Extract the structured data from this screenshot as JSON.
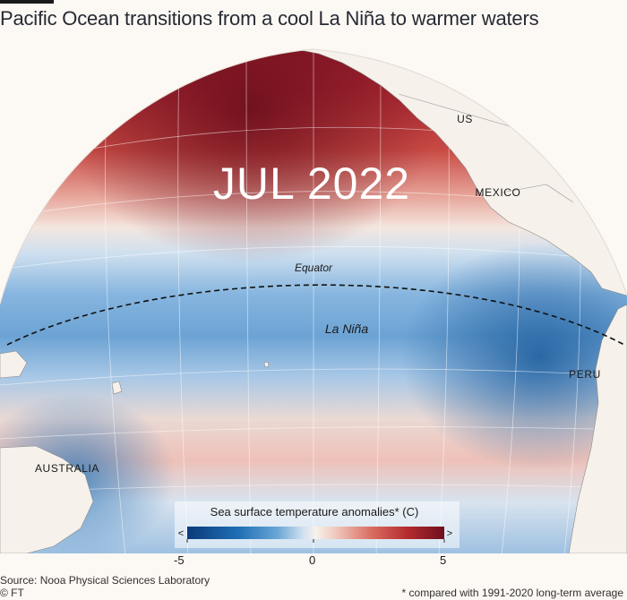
{
  "title": "Pacific Ocean transitions from a cool La Niña to warmer waters",
  "month_overlay": "JUL 2022",
  "labels": {
    "us": "US",
    "mexico": "MEXICO",
    "peru": "PERU",
    "australia": "AUSTRALIA",
    "equator": "Equator",
    "la_nina": "La Niña"
  },
  "legend": {
    "title": "Sea surface temperature anomalies* (C)",
    "min": -5,
    "max": 5,
    "ticks": [
      "-5",
      "0",
      "5"
    ],
    "arrow_left": "<",
    "arrow_right": ">",
    "colors": [
      "#0b3a7a",
      "#1f6fb4",
      "#6aa6d6",
      "#cfe0ef",
      "#f7f2ec",
      "#f0c7bc",
      "#d96b60",
      "#b32a2d",
      "#6e0f1e"
    ]
  },
  "source": "Source: Nooa Physical Sciences Laboratory",
  "credit": "© FT",
  "footnote": "* compared with 1991-2020 long-term average",
  "colors": {
    "background": "#fcf8f4",
    "land": "#f6f1ea",
    "warm": "#c23a37",
    "cool": "#3f86c4"
  }
}
